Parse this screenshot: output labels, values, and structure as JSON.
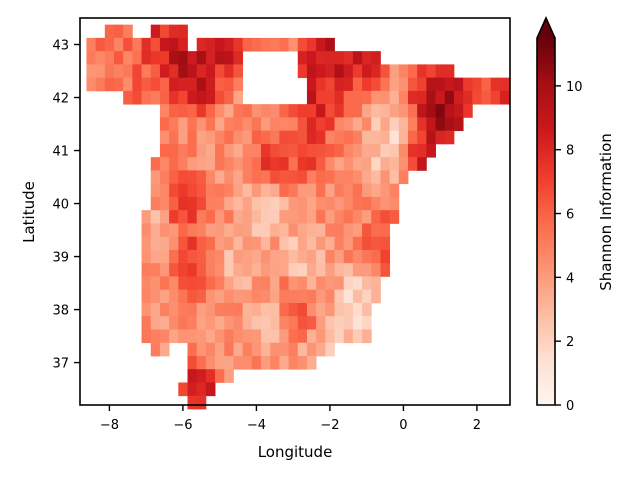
{
  "chart_data": {
    "type": "heatmap",
    "title": "",
    "xlabel": "Longitude",
    "ylabel": "Latitude",
    "xlim": [
      -8.8,
      2.9
    ],
    "ylim": [
      36.2,
      43.5
    ],
    "x_ticks": [
      -8,
      -6,
      -4,
      -2,
      0,
      2
    ],
    "y_ticks": [
      37,
      38,
      39,
      40,
      41,
      42,
      43
    ],
    "cell_size_deg": 0.25,
    "colorbar": {
      "label": "Shannon Information",
      "range": [
        0,
        11.5
      ],
      "ticks": [
        0,
        2,
        4,
        6,
        8,
        10
      ],
      "extend": "max",
      "colormap": "Reds",
      "colors": [
        "#fff5f0",
        "#fee0d2",
        "#fcbba1",
        "#fc9272",
        "#fb6a4a",
        "#ef3b2c",
        "#cb181d",
        "#a50f15",
        "#67000d"
      ]
    },
    "grid": false,
    "row_spans": [
      {
        "lat": 43.25,
        "spans": [
          [
            -8.0,
            -7.5
          ],
          [
            -6.75,
            -6.0
          ]
        ]
      },
      {
        "lat": 43.0,
        "spans": [
          [
            -8.5,
            -6.0
          ],
          [
            -5.5,
            -2.0
          ]
        ]
      },
      {
        "lat": 42.75,
        "spans": [
          [
            -8.5,
            -5.75
          ],
          [
            -5.5,
            -4.5
          ],
          [
            -2.75,
            -0.75
          ]
        ]
      },
      {
        "lat": 42.5,
        "spans": [
          [
            -8.5,
            -4.5
          ],
          [
            -2.75,
            1.25
          ]
        ]
      },
      {
        "lat": 42.25,
        "spans": [
          [
            -8.5,
            -4.5
          ],
          [
            -2.5,
            2.75
          ]
        ]
      },
      {
        "lat": 42.0,
        "spans": [
          [
            -7.5,
            -4.5
          ],
          [
            -2.5,
            2.75
          ]
        ]
      },
      {
        "lat": 41.75,
        "spans": [
          [
            -6.5,
            1.75
          ]
        ]
      },
      {
        "lat": 41.5,
        "spans": [
          [
            -6.5,
            1.5
          ]
        ]
      },
      {
        "lat": 41.25,
        "spans": [
          [
            -6.5,
            1.25
          ]
        ]
      },
      {
        "lat": 41.0,
        "spans": [
          [
            -6.5,
            0.75
          ]
        ]
      },
      {
        "lat": 40.75,
        "spans": [
          [
            -6.75,
            0.5
          ]
        ]
      },
      {
        "lat": 40.5,
        "spans": [
          [
            -6.75,
            0.0
          ]
        ]
      },
      {
        "lat": 40.25,
        "spans": [
          [
            -6.75,
            -0.25
          ]
        ]
      },
      {
        "lat": 40.0,
        "spans": [
          [
            -6.75,
            -0.25
          ]
        ]
      },
      {
        "lat": 39.75,
        "spans": [
          [
            -7.0,
            -0.25
          ]
        ]
      },
      {
        "lat": 39.5,
        "spans": [
          [
            -7.0,
            -0.5
          ]
        ]
      },
      {
        "lat": 39.25,
        "spans": [
          [
            -7.0,
            -0.5
          ]
        ]
      },
      {
        "lat": 39.0,
        "spans": [
          [
            -7.0,
            -0.5
          ]
        ]
      },
      {
        "lat": 38.75,
        "spans": [
          [
            -7.0,
            -0.5
          ]
        ]
      },
      {
        "lat": 38.5,
        "spans": [
          [
            -7.0,
            -0.75
          ]
        ]
      },
      {
        "lat": 38.25,
        "spans": [
          [
            -7.0,
            -0.75
          ]
        ]
      },
      {
        "lat": 38.0,
        "spans": [
          [
            -7.0,
            -1.0
          ]
        ]
      },
      {
        "lat": 37.75,
        "spans": [
          [
            -7.0,
            -1.0
          ]
        ]
      },
      {
        "lat": 37.5,
        "spans": [
          [
            -7.0,
            -1.0
          ]
        ]
      },
      {
        "lat": 37.25,
        "spans": [
          [
            -6.75,
            -6.5
          ],
          [
            -5.75,
            -2.0
          ]
        ]
      },
      {
        "lat": 37.0,
        "spans": [
          [
            -5.75,
            -2.5
          ]
        ]
      },
      {
        "lat": 36.75,
        "spans": [
          [
            -5.75,
            -4.75
          ]
        ]
      },
      {
        "lat": 36.5,
        "spans": [
          [
            -6.0,
            -5.25
          ]
        ]
      },
      {
        "lat": 36.25,
        "spans": [
          [
            -5.75,
            -5.5
          ]
        ]
      }
    ],
    "value_anchors": [
      {
        "lon": 1.0,
        "lat": 41.75,
        "value": 11.0
      },
      {
        "lon": 1.25,
        "lat": 41.75,
        "value": 10.5
      },
      {
        "lon": 1.0,
        "lat": 41.5,
        "value": 10.5
      },
      {
        "lon": 0.75,
        "lat": 42.0,
        "value": 10.0
      },
      {
        "lon": 1.5,
        "lat": 42.0,
        "value": 9.5
      },
      {
        "lon": 2.75,
        "lat": 42.25,
        "value": 10.0
      },
      {
        "lon": 0.5,
        "lat": 40.9,
        "value": 9.5
      },
      {
        "lon": -2.25,
        "lat": 42.75,
        "value": 10.0
      },
      {
        "lon": -1.75,
        "lat": 42.75,
        "value": 10.5
      },
      {
        "lon": -1.0,
        "lat": 42.75,
        "value": 9.5
      },
      {
        "lon": -2.5,
        "lat": 42.0,
        "value": 10.0
      },
      {
        "lon": -5.75,
        "lat": 42.5,
        "value": 10.5
      },
      {
        "lon": -6.0,
        "lat": 42.5,
        "value": 10.0
      },
      {
        "lon": -6.0,
        "lat": 42.75,
        "value": 9.5
      },
      {
        "lon": -5.5,
        "lat": 42.25,
        "value": 9.0
      },
      {
        "lon": -4.75,
        "lat": 43.25,
        "value": 10.5
      },
      {
        "lon": -5.0,
        "lat": 43.0,
        "value": 9.5
      },
      {
        "lon": -5.5,
        "lat": 42.75,
        "value": 9.5
      },
      {
        "lon": -2.25,
        "lat": 43.0,
        "value": 9.0
      },
      {
        "lon": -6.25,
        "lat": 43.25,
        "value": 9.0
      },
      {
        "lon": -6.75,
        "lat": 43.0,
        "value": 8.5
      },
      {
        "lon": -7.75,
        "lat": 43.25,
        "value": 6.5
      },
      {
        "lon": -8.25,
        "lat": 42.75,
        "value": 5.5
      },
      {
        "lon": -7.0,
        "lat": 42.25,
        "value": 6.5
      },
      {
        "lon": -6.0,
        "lat": 40.0,
        "value": 8.5
      },
      {
        "lon": -5.75,
        "lat": 38.9,
        "value": 8.0
      },
      {
        "lon": -3.5,
        "lat": 40.75,
        "value": 8.5
      },
      {
        "lon": -2.5,
        "lat": 41.0,
        "value": 8.0
      },
      {
        "lon": -5.75,
        "lat": 36.5,
        "value": 9.0
      },
      {
        "lon": -5.5,
        "lat": 36.25,
        "value": 9.5
      },
      {
        "lon": -0.5,
        "lat": 39.25,
        "value": 7.5
      },
      {
        "lon": -0.25,
        "lat": 41.25,
        "value": 1.5
      },
      {
        "lon": -0.5,
        "lat": 41.0,
        "value": 2.0
      },
      {
        "lon": -1.25,
        "lat": 38.25,
        "value": 1.5
      },
      {
        "lon": -1.5,
        "lat": 37.75,
        "value": 1.5
      },
      {
        "lon": -3.5,
        "lat": 37.75,
        "value": 1.5
      },
      {
        "lon": -2.75,
        "lat": 39.0,
        "value": 2.0
      },
      {
        "lon": -3.75,
        "lat": 40.0,
        "value": 2.0
      },
      {
        "lon": -4.5,
        "lat": 38.9,
        "value": 2.5
      },
      {
        "lon": -2.25,
        "lat": 37.0,
        "value": 2.5
      },
      {
        "lon": -6.75,
        "lat": 39.5,
        "value": 3.0
      },
      {
        "lon": -2.0,
        "lat": 42.0,
        "value": 8.0
      },
      {
        "lon": -6.5,
        "lat": 41.0,
        "value": 5.0
      },
      {
        "lon": -3.0,
        "lat": 38.0,
        "value": 7.0
      },
      {
        "lon": -4.0,
        "lat": 39.5,
        "value": 3.0
      }
    ],
    "base_value": 4.5
  }
}
